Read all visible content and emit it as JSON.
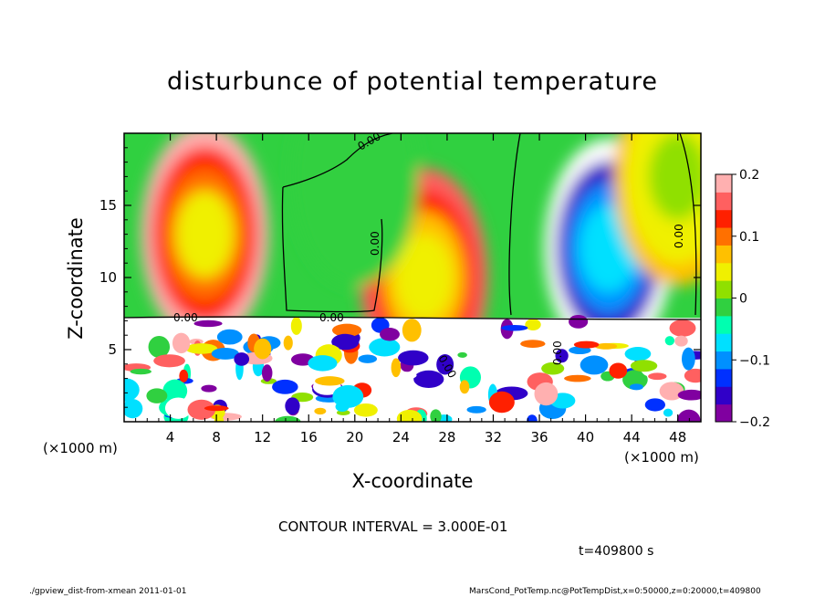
{
  "chart_data": {
    "type": "heatmap",
    "title": "disturbunce of potential temperature",
    "xlabel": "X-coordinate",
    "ylabel": "Z-coordinate",
    "x_unit_left": "(×1000 m)",
    "x_unit_right": "(×1000 m)",
    "xlim": [
      0,
      50
    ],
    "ylim": [
      0,
      20
    ],
    "x_ticks": [
      4,
      8,
      12,
      16,
      20,
      24,
      28,
      32,
      36,
      40,
      44,
      48
    ],
    "y_ticks": [
      5,
      10,
      15
    ],
    "colorbar": {
      "ticks": [
        {
          "value": 0.2,
          "label": "0.2"
        },
        {
          "value": 0.1,
          "label": "0.1"
        },
        {
          "value": 0,
          "label": "0"
        },
        {
          "value": -0.1,
          "label": "−0.1"
        },
        {
          "value": -0.2,
          "label": "−0.2"
        }
      ],
      "range": [
        -0.2,
        0.2
      ],
      "colors": [
        "#8000a0",
        "#3000c8",
        "#0030ff",
        "#0090ff",
        "#00e0ff",
        "#00ffb0",
        "#30d040",
        "#90e000",
        "#f0f000",
        "#ffc000",
        "#ff7000",
        "#ff2000",
        "#ff6060",
        "#ffb0b0"
      ]
    },
    "contour_labels": [
      "0.00",
      "0.00",
      "0.00",
      "0.00",
      "0.00",
      "0.00",
      "0.00"
    ],
    "blobs": [
      {
        "x": 7,
        "z": 13,
        "v": 0.19
      },
      {
        "x": 26,
        "z": 10,
        "v": 0.17
      },
      {
        "x": 20,
        "z": 17,
        "v": -0.01
      },
      {
        "x": 42,
        "z": 12,
        "v": -0.22
      },
      {
        "x": 48,
        "z": 17,
        "v": 0.07
      }
    ],
    "contour_interval": "CONTOUR INTERVAL = 3.000E-01",
    "time": "t=409800 s"
  },
  "footer": {
    "left": "./gpview_dist-from-xmean   2011-01-01",
    "right": "MarsCond_PotTemp.nc@PotTempDist,x=0:50000,z=0:20000,t=409800"
  }
}
